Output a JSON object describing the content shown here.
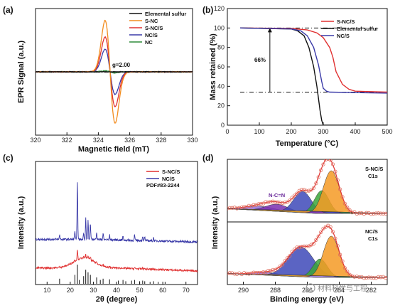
{
  "chart_data": [
    {
      "panel": "(a)",
      "type": "line",
      "xlabel": "Magnetic field (mT)",
      "ylabel": "EPR Signal (a.u.)",
      "xlim": [
        320,
        330
      ],
      "x_ticks": [
        "320",
        "322",
        "324",
        "326",
        "328",
        "330"
      ],
      "annotations": [
        {
          "text": "g=2.00",
          "x": 324.9,
          "y": 0.18
        }
      ],
      "series": [
        {
          "name": "Elemental sulfur",
          "color": "#111111",
          "center": 324.75,
          "width": 0.32,
          "amplitude": 0.0
        },
        {
          "name": "S-NC",
          "color": "#f28c1e",
          "center": 324.75,
          "width": 0.32,
          "amplitude": 1.0
        },
        {
          "name": "S-NC/S",
          "color": "#e03030",
          "center": 324.75,
          "width": 0.32,
          "amplitude": 0.68
        },
        {
          "name": "NC/S",
          "color": "#3a3aa8",
          "center": 324.75,
          "width": 0.32,
          "amplitude": 0.44
        },
        {
          "name": "NC",
          "color": "#2e8b3a",
          "center": 324.75,
          "width": 0.32,
          "amplitude": 0.02
        }
      ]
    },
    {
      "panel": "(b)",
      "type": "line",
      "xlabel": "Temperature (°C)",
      "ylabel": "Mass retained (%)",
      "xlim": [
        0,
        500
      ],
      "ylim": [
        0,
        120
      ],
      "x_ticks": [
        "0",
        "100",
        "200",
        "300",
        "400",
        "500"
      ],
      "y_ticks": [
        "0",
        "20",
        "40",
        "60",
        "80",
        "100",
        "120"
      ],
      "annotations": [
        {
          "text": "66%",
          "x": 100,
          "y": 72
        }
      ],
      "series": [
        {
          "name": "S-NC/S",
          "color": "#e03030",
          "x": [
            40,
            200,
            250,
            280,
            300,
            320,
            330,
            340,
            360,
            380,
            400,
            500
          ],
          "y": [
            100,
            99.5,
            98,
            95,
            90,
            80,
            70,
            55,
            42,
            37,
            35,
            34
          ]
        },
        {
          "name": "Elemental sulfur",
          "color": "#111111",
          "x": [
            40,
            200,
            220,
            240,
            255,
            270,
            280,
            290,
            295,
            300,
            500
          ],
          "y": [
            100,
            99,
            97,
            92,
            80,
            60,
            40,
            15,
            5,
            0,
            0
          ]
        },
        {
          "name": "NC/S",
          "color": "#3a3aa8",
          "x": [
            40,
            200,
            230,
            250,
            270,
            285,
            295,
            300,
            310,
            320,
            500
          ],
          "y": [
            100,
            99,
            97,
            92,
            80,
            62,
            45,
            38,
            35,
            34,
            33
          ]
        }
      ]
    },
    {
      "panel": "(c)",
      "type": "line",
      "xlabel": "2θ (degree)",
      "ylabel": "Intensity (a.u.)",
      "xlim": [
        5,
        75
      ],
      "x_ticks": [
        "10",
        "20",
        "30",
        "40",
        "50",
        "60",
        "70"
      ],
      "reference_label": "PDF#83-2244",
      "series": [
        {
          "name": "S-NC/S",
          "color": "#e03030"
        },
        {
          "name": "NC/S",
          "color": "#3a3aa8"
        }
      ],
      "peaks_2theta": [
        15.4,
        22.0,
        23.1,
        25.8,
        26.7,
        27.7,
        28.7,
        31.4,
        34.2,
        37.0,
        42.8,
        47.8,
        51.3,
        52.2,
        56.0
      ]
    },
    {
      "panel": "(d)",
      "type": "line",
      "xlabel": "Binding energy (eV)",
      "ylabel": "Intensity (a.u.)",
      "xlim": [
        291,
        281
      ],
      "x_ticks": [
        "290",
        "288",
        "286",
        "284",
        "282"
      ],
      "subpanels": [
        {
          "label_line1": "S-NC/S",
          "label_line2": "C1s",
          "annotation": "N-C=N"
        },
        {
          "label_line1": "NC/S",
          "label_line2": "C1s"
        }
      ]
    }
  ],
  "watermark": "材料科学与工程"
}
